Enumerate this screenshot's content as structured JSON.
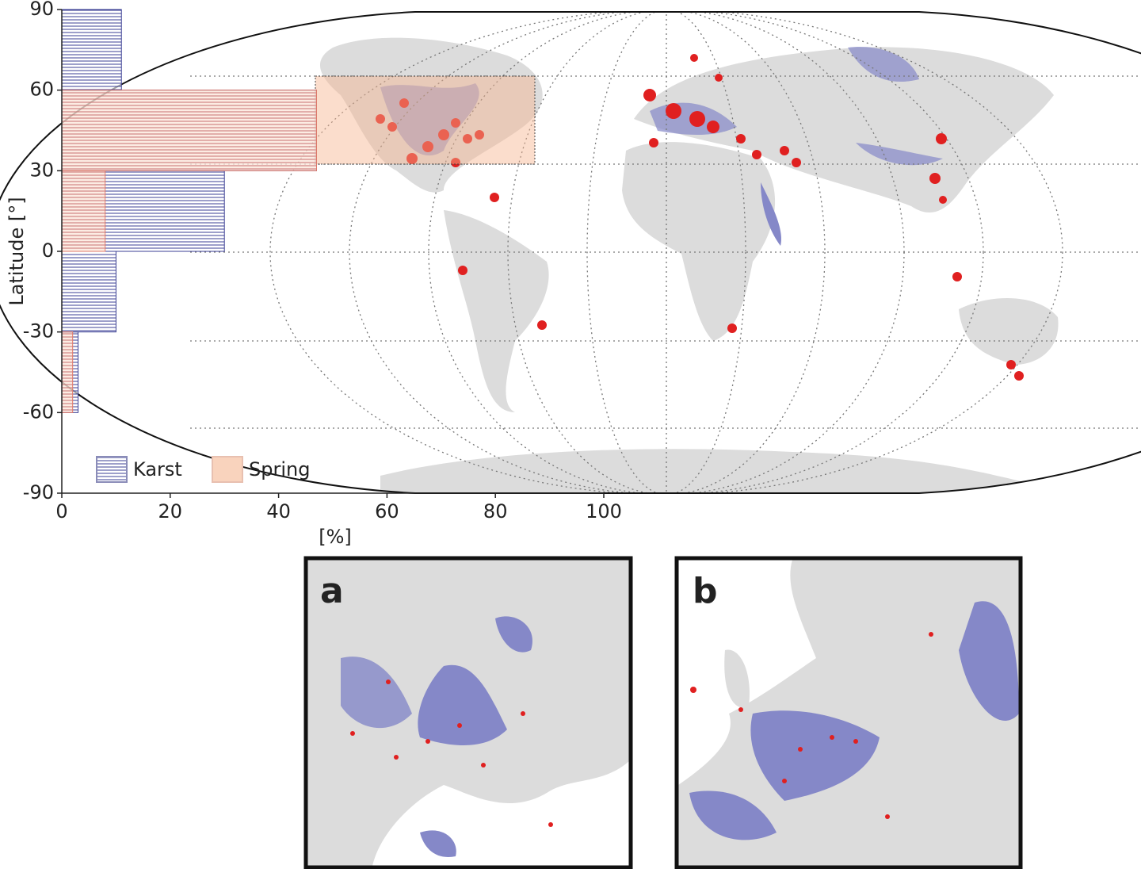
{
  "chart_data": {
    "type": "histogram",
    "bins": [
      -90,
      -60,
      -30,
      0,
      30,
      60,
      90
    ],
    "series": [
      {
        "name": "Karst",
        "color": "#3b3f94",
        "values": [
          0,
          3,
          10,
          30,
          47,
          11
        ]
      },
      {
        "name": "Spring",
        "color": "#e07a6a",
        "values": [
          0,
          2,
          0,
          8,
          47,
          0
        ]
      }
    ],
    "orientation": "horizontal",
    "ylabel": "Latitude [°]",
    "xlabel": "[%]",
    "ylim": [
      -90,
      90
    ],
    "yticks": [
      -90,
      -60,
      -30,
      0,
      30,
      60,
      90
    ],
    "xlim": [
      0,
      100
    ],
    "xticks": [
      0,
      20,
      40,
      60,
      80,
      100
    ],
    "legend": "bottom-left"
  },
  "panels": [
    "a",
    "b"
  ]
}
